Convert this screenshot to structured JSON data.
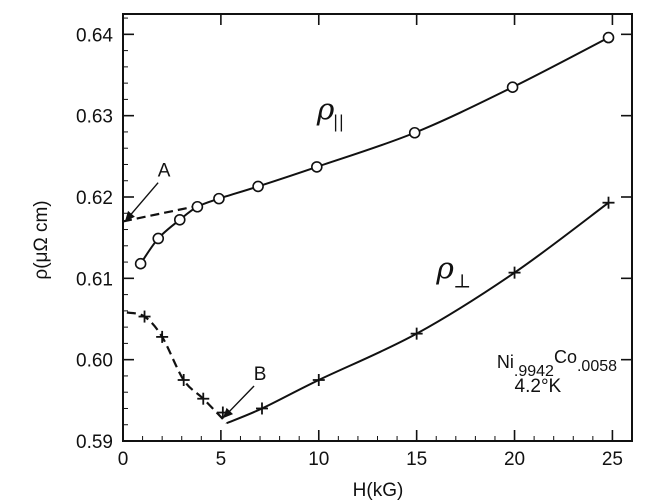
{
  "chart_data": {
    "type": "scatter",
    "xlabel": "H(kG)",
    "ylabel": "ρ(μΩ cm)",
    "xlim": [
      0,
      26
    ],
    "ylim": [
      0.59,
      0.6425
    ],
    "x_ticks": [
      "0",
      "5",
      "10",
      "15",
      "20",
      "25"
    ],
    "y_ticks": [
      "0.59",
      "0.60",
      "0.61",
      "0.62",
      "0.63",
      "0.64"
    ],
    "grid": false,
    "series": [
      {
        "name": "ρ∥",
        "marker": "circle",
        "points": [
          [
            0.9,
            0.6118
          ],
          [
            1.8,
            0.6149
          ],
          [
            2.9,
            0.6172
          ],
          [
            3.8,
            0.6188
          ],
          [
            4.9,
            0.6198
          ],
          [
            6.9,
            0.6213
          ],
          [
            9.9,
            0.6237
          ],
          [
            14.9,
            0.6279
          ],
          [
            19.9,
            0.6335
          ],
          [
            24.8,
            0.6396
          ]
        ],
        "extrapolation": [
          [
            0.0,
            0.617
          ],
          [
            4.0,
            0.619
          ]
        ]
      },
      {
        "name": "ρ⊥",
        "marker": "plus",
        "points": [
          [
            1.1,
            0.6053
          ],
          [
            2.0,
            0.6028
          ],
          [
            3.1,
            0.5975
          ],
          [
            4.1,
            0.5952
          ],
          [
            5.1,
            0.5935
          ],
          [
            7.1,
            0.594
          ],
          [
            10.0,
            0.5975
          ],
          [
            15.0,
            0.6032
          ],
          [
            20.0,
            0.6107
          ],
          [
            24.8,
            0.6193
          ]
        ],
        "dashed_segment": [
          [
            0.2,
            0.6058
          ],
          [
            1.1,
            0.6053
          ],
          [
            2.0,
            0.6028
          ],
          [
            3.1,
            0.5975
          ],
          [
            4.1,
            0.5952
          ],
          [
            5.3,
            0.5922
          ]
        ],
        "solid_curve": [
          [
            5.3,
            0.5922
          ],
          [
            7.1,
            0.594
          ],
          [
            10.0,
            0.5975
          ],
          [
            15.0,
            0.6032
          ],
          [
            20.0,
            0.6107
          ],
          [
            24.8,
            0.6193
          ]
        ]
      }
    ],
    "annotations": [
      {
        "id": "A",
        "text": "A",
        "target": [
          0.1,
          0.617
        ],
        "label_at": [
          2.1,
          0.6225
        ]
      },
      {
        "id": "B",
        "text": "B",
        "target": [
          5.1,
          0.5928
        ],
        "label_at": [
          7.0,
          0.5975
        ]
      }
    ],
    "series_labels": {
      "parallel": {
        "main": "ρ",
        "sub": "||",
        "at": [
          9.9,
          0.6295
        ]
      },
      "perpendicular": {
        "main": "ρ",
        "sub": "⊥",
        "at": [
          16.0,
          0.61
        ]
      }
    },
    "sample_label": {
      "base1": "Ni",
      "sub1": ".9942",
      "base2": "Co",
      "sub2": ".0058",
      "temperature": "4.2°K",
      "at": [
        19.1,
        0.599
      ],
      "temp_at": [
        20.0,
        0.596
      ]
    }
  }
}
